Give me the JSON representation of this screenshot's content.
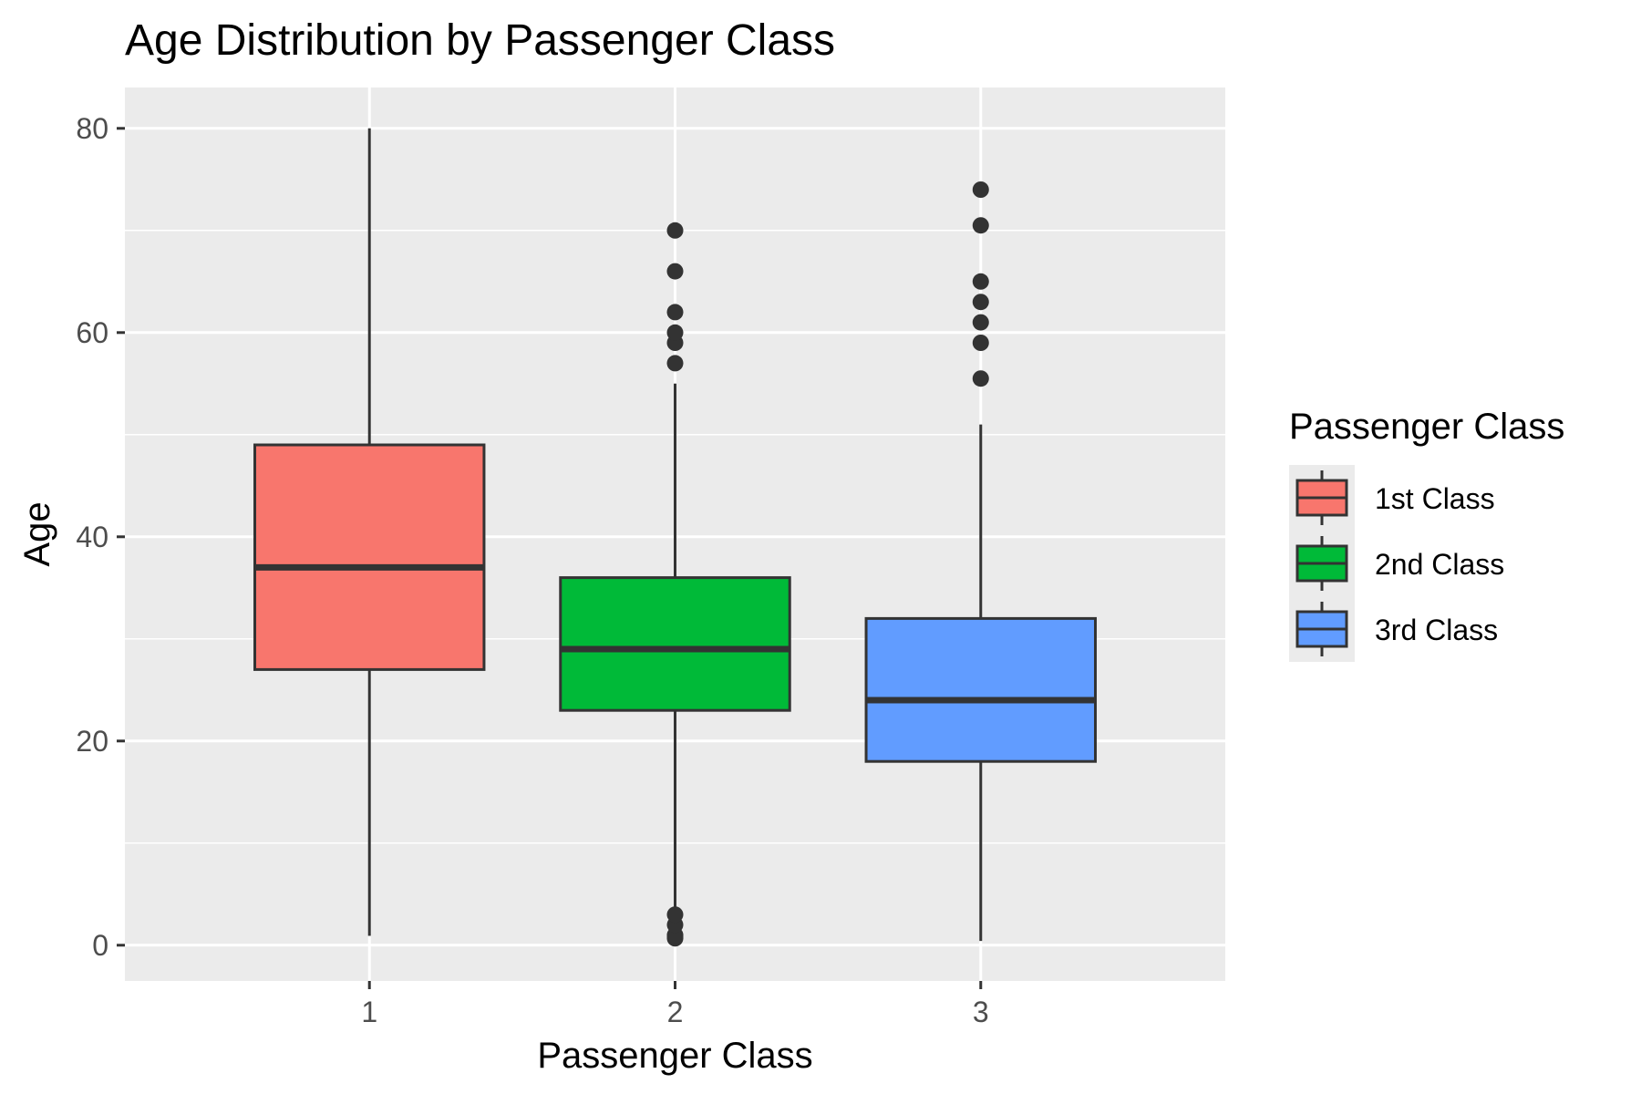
{
  "chart_data": {
    "type": "boxplot",
    "title": "Age Distribution by Passenger Class",
    "xlabel": "Passenger Class",
    "ylabel": "Age",
    "ylim": [
      -3.5,
      84
    ],
    "y_ticks": [
      0,
      20,
      40,
      60,
      80
    ],
    "categories": [
      "1",
      "2",
      "3"
    ],
    "grid": true,
    "legend": {
      "title": "Passenger Class",
      "position": "right",
      "entries": [
        "1st Class",
        "2nd Class",
        "3rd Class"
      ]
    },
    "series": [
      {
        "name": "1st Class",
        "category": "1",
        "color": "#F8766D",
        "whisker_low": 0.92,
        "q1": 27,
        "median": 37,
        "q3": 49,
        "whisker_high": 80,
        "outliers": []
      },
      {
        "name": "2nd Class",
        "category": "2",
        "color": "#00BA38",
        "whisker_low": 3,
        "q1": 23,
        "median": 29,
        "q3": 36,
        "whisker_high": 55,
        "outliers": [
          0.67,
          0.83,
          0.92,
          1,
          2,
          3,
          57,
          59,
          60,
          62,
          66,
          70
        ]
      },
      {
        "name": "3rd Class",
        "category": "3",
        "color": "#619CFF",
        "whisker_low": 0.42,
        "q1": 18,
        "median": 24,
        "q3": 32,
        "whisker_high": 51,
        "outliers": [
          55.5,
          59,
          61,
          63,
          65,
          70.5,
          74
        ]
      }
    ],
    "colors": {
      "panel_background": "#EBEBEB",
      "grid_line": "#FFFFFF",
      "box_stroke": "#333333",
      "outlier": "#333333",
      "tick_label": "#4D4D4D",
      "axis_title": "#000000"
    }
  }
}
